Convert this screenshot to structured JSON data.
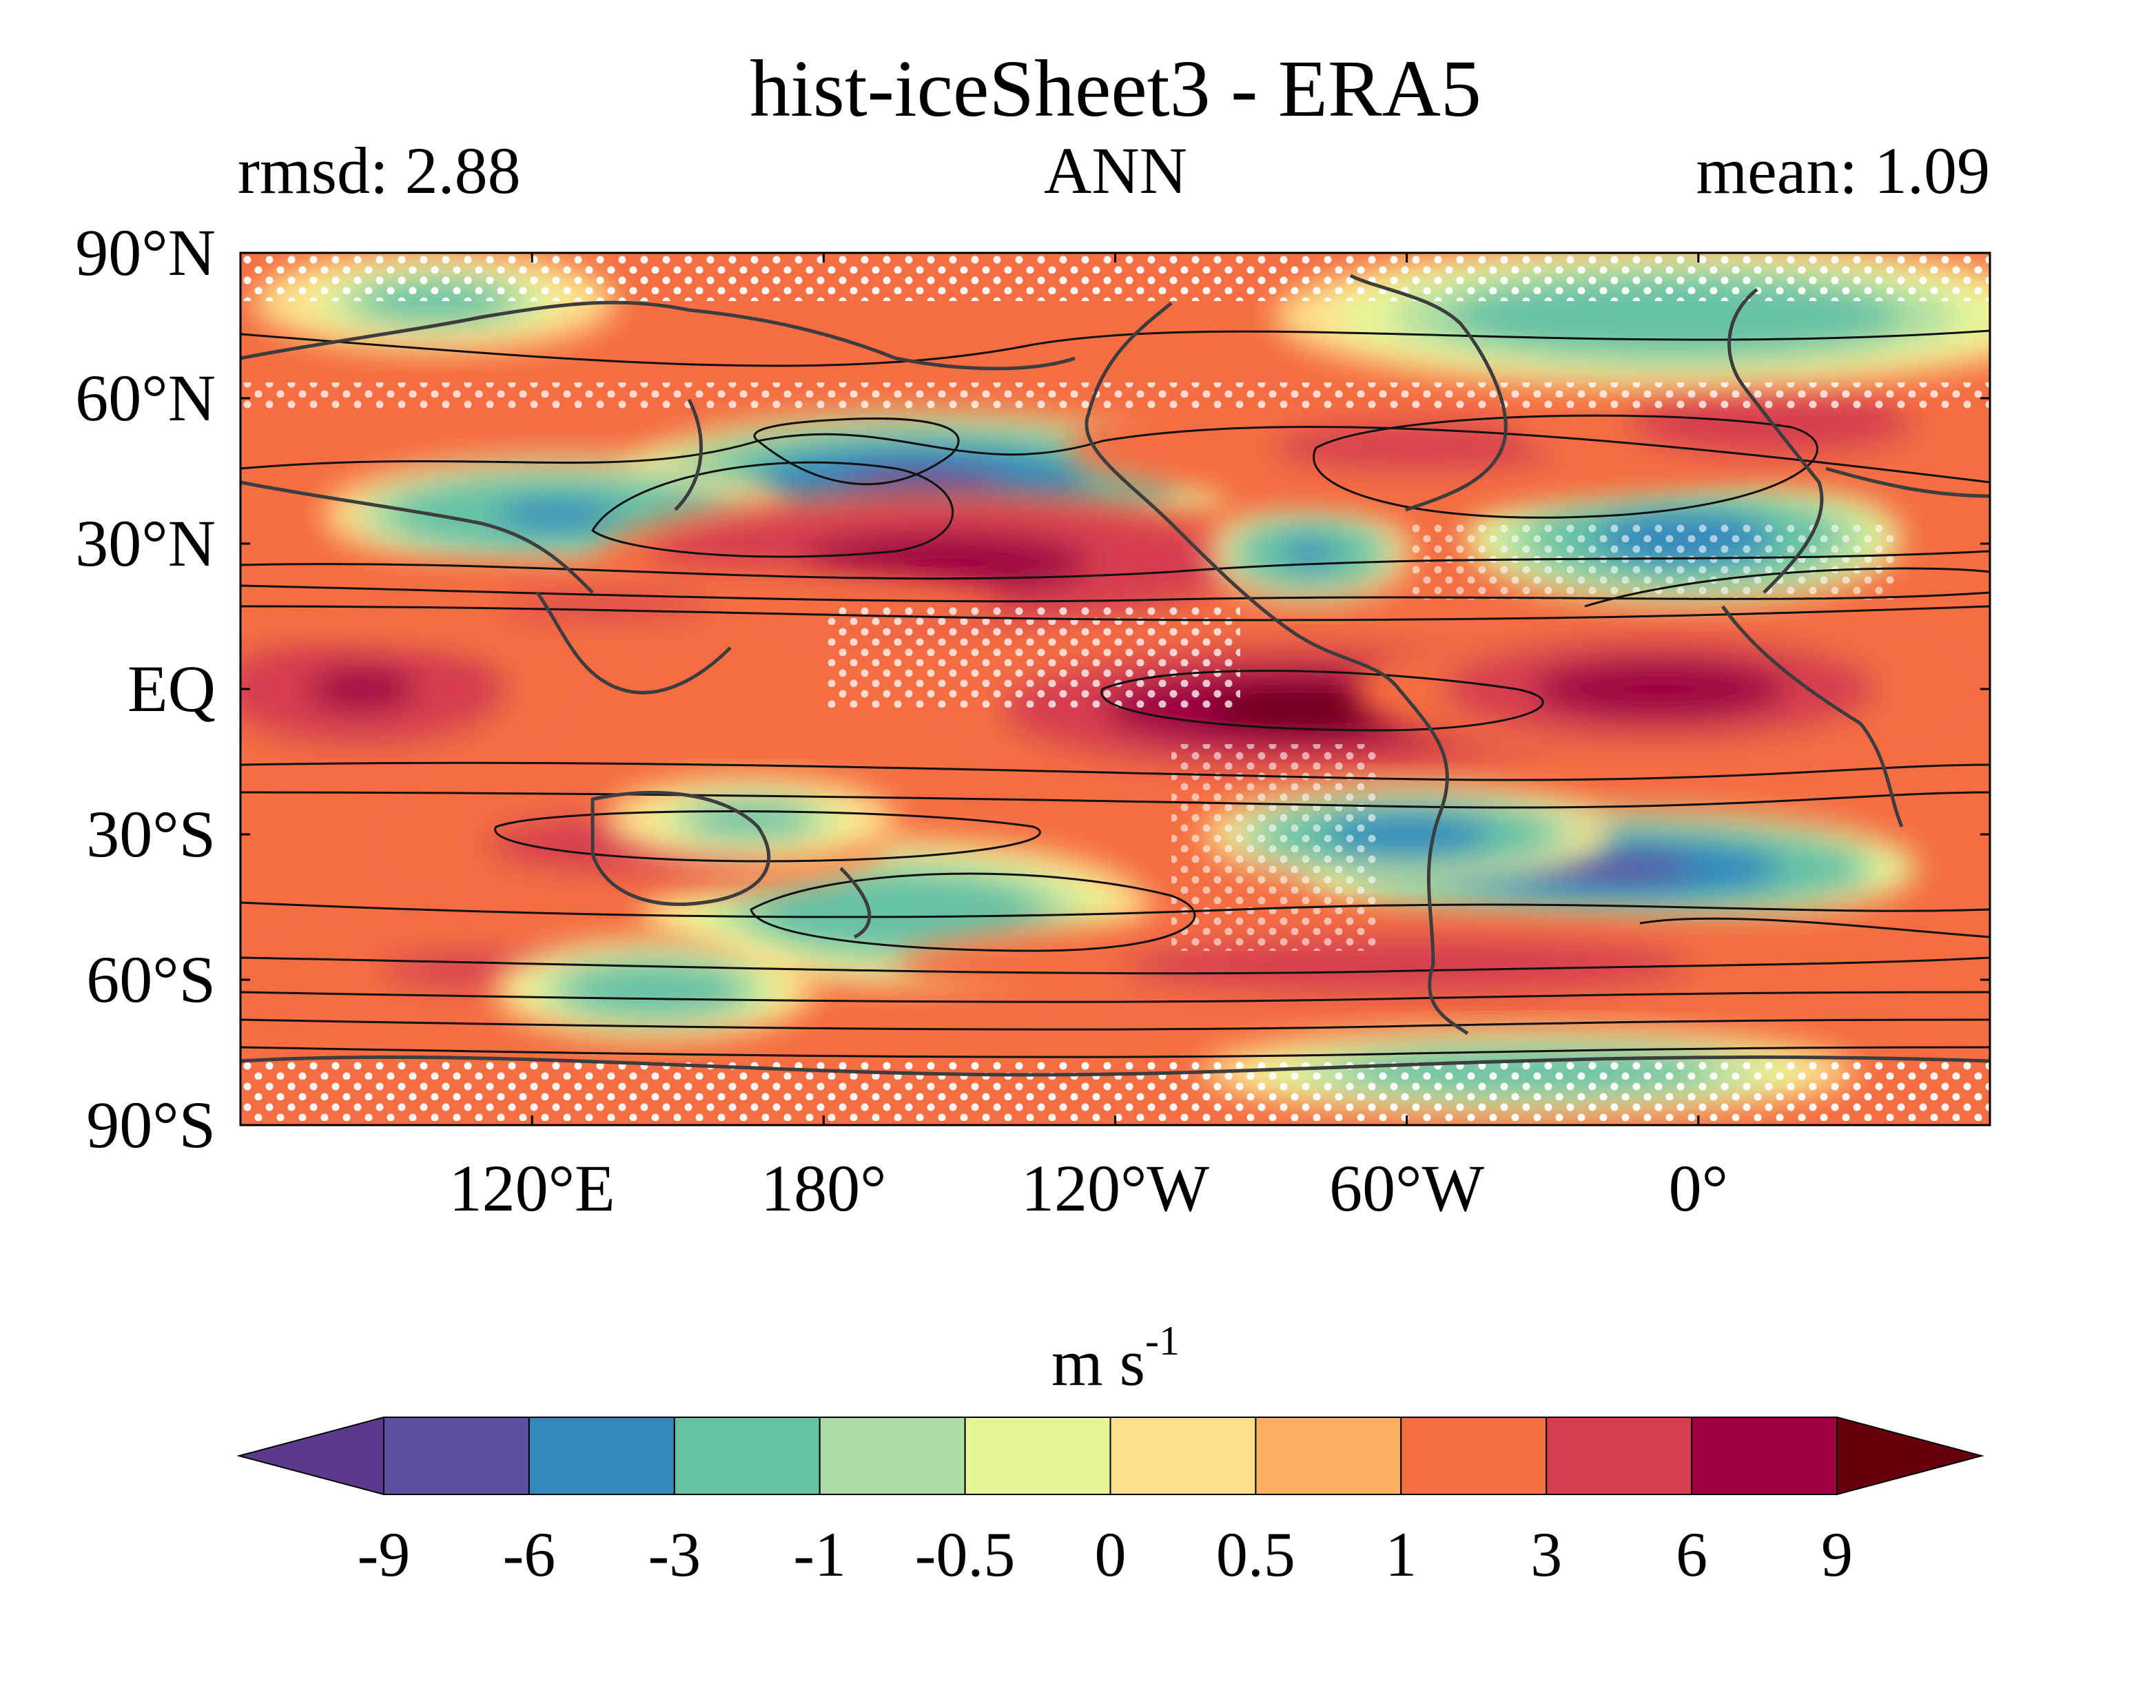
{
  "title": "hist-iceSheet3 - ERA5",
  "subtitles": {
    "left": "rmsd: 2.88",
    "center": "ANN",
    "right": "mean: 1.09"
  },
  "map": {
    "type": "contour-map",
    "projection": "equirectangular",
    "lon_range": [
      60,
      420
    ],
    "lat_range": [
      -90,
      90
    ],
    "lat_ticks": [
      {
        "lat": 90,
        "label": "90°N"
      },
      {
        "lat": 60,
        "label": "60°N"
      },
      {
        "lat": 30,
        "label": "30°N"
      },
      {
        "lat": 0,
        "label": "EQ"
      },
      {
        "lat": -30,
        "label": "30°S"
      },
      {
        "lat": -60,
        "label": "60°S"
      },
      {
        "lat": -90,
        "label": "90°S"
      }
    ],
    "lon_ticks": [
      {
        "lon": 120,
        "label": "120°E"
      },
      {
        "lon": 180,
        "label": "180°"
      },
      {
        "lon": 240,
        "label": "120°W"
      },
      {
        "lon": 300,
        "label": "60°W"
      },
      {
        "lon": 360,
        "label": "0°"
      }
    ],
    "background_level": "0.5 to 1",
    "features": [
      {
        "name": "tropical-indian-max",
        "lon": 85,
        "lat": 0,
        "rx": 28,
        "ry": 11,
        "value": 6.5
      },
      {
        "name": "n-pacific-min",
        "lon": 200,
        "lat": 42,
        "rx": 42,
        "ry": 10,
        "value": -6.2
      },
      {
        "name": "w-pacific-min",
        "lon": 125,
        "lat": 36,
        "rx": 32,
        "ry": 8,
        "value": -3.5
      },
      {
        "name": "subtropical-pacific-max",
        "lon": 205,
        "lat": 26,
        "rx": 48,
        "ry": 10,
        "value": 8
      },
      {
        "name": "tropical-pacific-max",
        "lon": 278,
        "lat": -4,
        "rx": 48,
        "ry": 10,
        "value": 9.5
      },
      {
        "name": "tropical-atlantic-max",
        "lon": 352,
        "lat": 0,
        "rx": 42,
        "ry": 10,
        "value": 7.5
      },
      {
        "name": "n-atlantic-min",
        "lon": 357,
        "lat": 31,
        "rx": 30,
        "ry": 9,
        "value": -4.5
      },
      {
        "name": "gulf-min",
        "lon": 280,
        "lat": 28,
        "rx": 14,
        "ry": 7,
        "value": -3.5
      },
      {
        "name": "n-america-max",
        "lon": 302,
        "lat": 50,
        "rx": 48,
        "ry": 8,
        "value": 4
      },
      {
        "name": "n-europe-max",
        "lon": 375,
        "lat": 55,
        "rx": 35,
        "ry": 8,
        "value": 4.5
      },
      {
        "name": "arctic-min",
        "lon": 355,
        "lat": 77,
        "rx": 55,
        "ry": 10,
        "value": -2
      },
      {
        "name": "siberia-min",
        "lon": 100,
        "lat": 80,
        "rx": 25,
        "ry": 7,
        "value": -1.5
      },
      {
        "name": "s-atlantic-min",
        "lon": 342,
        "lat": -37,
        "rx": 42,
        "ry": 8,
        "value": -6.5
      },
      {
        "name": "se-pacific-min",
        "lon": 300,
        "lat": -30,
        "rx": 28,
        "ry": 7,
        "value": -4
      },
      {
        "name": "sw-pacific-min",
        "lon": 195,
        "lat": -46,
        "rx": 35,
        "ry": 10,
        "value": -2.5
      },
      {
        "name": "australia-max",
        "lon": 140,
        "lat": -32,
        "rx": 35,
        "ry": 7,
        "value": 4.5
      },
      {
        "name": "tasman-min",
        "lon": 165,
        "lat": -27,
        "rx": 20,
        "ry": 6,
        "value": -1.5
      },
      {
        "name": "southern-ocean-max",
        "lon": 300,
        "lat": -57,
        "rx": 70,
        "ry": 7,
        "value": 4.5
      },
      {
        "name": "s-indian-max",
        "lon": 110,
        "lat": -58,
        "rx": 35,
        "ry": 6,
        "value": 4
      },
      {
        "name": "s-indian-min",
        "lon": 145,
        "lat": -62,
        "rx": 22,
        "ry": 7,
        "value": -2.5
      },
      {
        "name": "antarctic-min",
        "lon": 325,
        "lat": -79,
        "rx": 45,
        "ry": 6,
        "value": -2
      },
      {
        "name": "indian-subtropic-max",
        "lon": 135,
        "lat": 17,
        "rx": 55,
        "ry": 6,
        "value": 3.2
      }
    ]
  },
  "colorbar": {
    "units_base": "m s",
    "units_exp": "-1",
    "levels": [
      -9,
      -6,
      -3,
      -1,
      -0.5,
      0,
      0.5,
      1,
      3,
      6,
      9
    ],
    "tick_labels": [
      "-9",
      "-6",
      "-3",
      "-1",
      "-0.5",
      "0",
      "0.5",
      "1",
      "3",
      "6",
      "9"
    ],
    "colors": [
      "#5e4fa2",
      "#3288bd",
      "#66c2a5",
      "#abdda4",
      "#e6f598",
      "#fee08b",
      "#fdae61",
      "#f46d43",
      "#d53e4f",
      "#9e0142"
    ],
    "under_color": "#5b3a8c",
    "over_color": "#67000d"
  }
}
